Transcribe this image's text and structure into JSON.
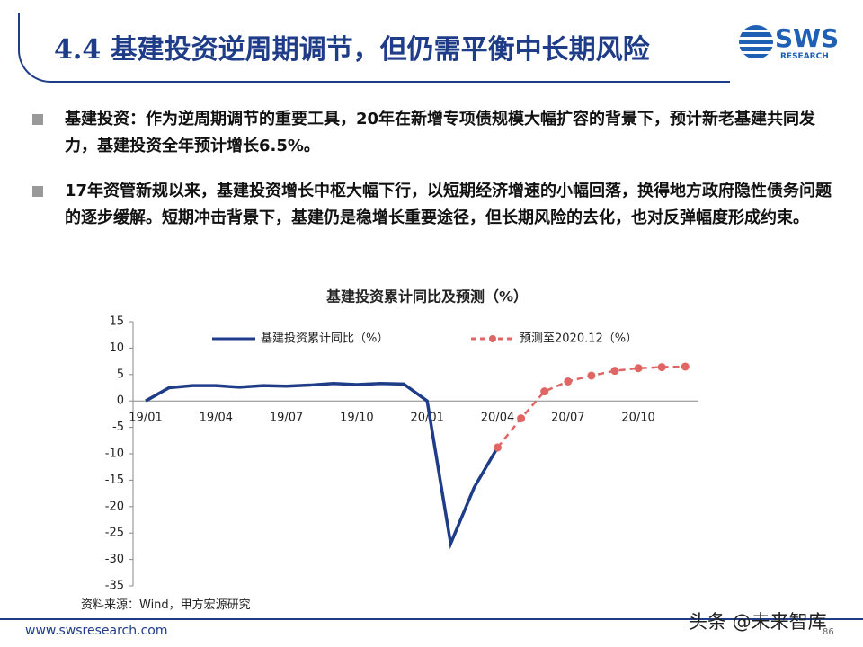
{
  "header": {
    "title": "4.4 基建投资逆周期调节，但仍需平衡中长期风险",
    "logo": "SWS",
    "logo_sub": "RESEARCH"
  },
  "bullets": [
    "基建投资：作为逆周期调节的重要工具，20年在新增专项债规模大幅扩容的背景下，预计新老基建共同发力，基建投资全年预计增长6.5%。",
    "17年资管新规以来，基建投资增长中枢大幅下行，以短期经济增速的小幅回落，换得地方政府隐性债务问题的逐步缓解。短期冲击背景下，基建仍是稳增长重要途径，但长期风险的去化，也对反弹幅度形成约束。"
  ],
  "chart_data": {
    "type": "line",
    "title": "基建投资累计同比及预测（%）",
    "categories": [
      "19/01",
      null,
      null,
      "19/04",
      null,
      null,
      "19/07",
      null,
      null,
      "19/10",
      null,
      null,
      "20/01",
      null,
      null,
      "20/04",
      null,
      null,
      "20/07",
      null,
      null,
      "20/10",
      null,
      null
    ],
    "series": [
      {
        "name": "基建投资累计同比（%）",
        "color": "#1f3c88",
        "dash": false,
        "values": [
          0,
          2.5,
          2.9,
          2.9,
          2.6,
          2.9,
          2.8,
          3.0,
          3.3,
          3.1,
          3.3,
          3.2,
          0,
          -27,
          -16.4,
          -8.8,
          null,
          null,
          null,
          null,
          null,
          null,
          null,
          null
        ]
      },
      {
        "name": "预测至2020.12（%）",
        "color": "#e06666",
        "dash": true,
        "values": [
          null,
          null,
          null,
          null,
          null,
          null,
          null,
          null,
          null,
          null,
          null,
          null,
          null,
          null,
          null,
          -8.8,
          -3.3,
          1.8,
          3.7,
          4.8,
          5.7,
          6.2,
          6.4,
          6.5
        ]
      }
    ],
    "ylim": [
      -35,
      15
    ],
    "yticks": [
      -35,
      -30,
      -25,
      -20,
      -15,
      -10,
      -5,
      0,
      5,
      10,
      15
    ],
    "legend": "top"
  },
  "source": "资料来源：Wind，甲方宏源研究",
  "footer": {
    "url": "www.swsresearch.com",
    "page": "86",
    "watermark": "头条 @未来智库"
  }
}
